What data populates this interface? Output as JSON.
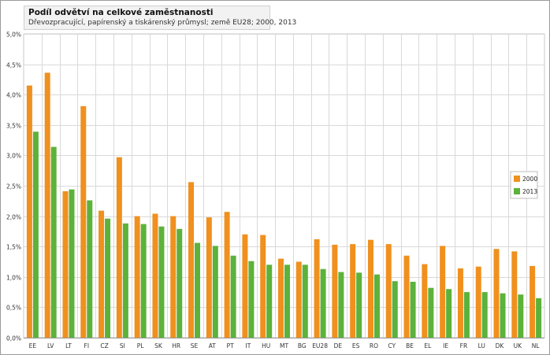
{
  "chart_data": {
    "type": "bar",
    "title": "Podíl odvětví na celkové zaměstnanosti",
    "subtitle": "Dřevozpracující, papírenský a tiskárenský průmysl; země EU28; 2000, 2013",
    "xlabel": "",
    "ylabel": "",
    "ylim": [
      0,
      0.05
    ],
    "yticks": [
      0,
      0.005,
      0.01,
      0.015,
      0.02,
      0.025,
      0.03,
      0.035,
      0.04,
      0.045,
      0.05
    ],
    "ytick_labels": [
      "0,0%",
      "0,5%",
      "1,0%",
      "1,5%",
      "2,0%",
      "2,5%",
      "3,0%",
      "3,5%",
      "4,0%",
      "4,5%",
      "5,0%"
    ],
    "grid": true,
    "legend_position": "right",
    "categories": [
      "EE",
      "LV",
      "LT",
      "FI",
      "CZ",
      "SI",
      "PL",
      "SK",
      "HR",
      "SE",
      "AT",
      "PT",
      "IT",
      "HU",
      "MT",
      "BG",
      "EU28",
      "DE",
      "ES",
      "RO",
      "CY",
      "BE",
      "EL",
      "IE",
      "FR",
      "LU",
      "DK",
      "UK",
      "NL"
    ],
    "series": [
      {
        "name": "2000",
        "color": "#f0901e",
        "values": [
          0.0415,
          0.0436,
          0.0241,
          0.0381,
          0.0209,
          0.0297,
          0.02,
          0.0204,
          0.02,
          0.0256,
          0.0198,
          0.0207,
          0.017,
          0.0169,
          0.013,
          0.0125,
          0.0162,
          0.0153,
          0.0154,
          0.0161,
          0.0154,
          0.0135,
          0.0121,
          0.0151,
          0.0114,
          0.0117,
          0.0146,
          0.0142,
          0.0118
        ]
      },
      {
        "name": "2013",
        "color": "#5cb23a",
        "values": [
          0.0339,
          0.0314,
          0.0244,
          0.0226,
          0.0196,
          0.0188,
          0.0187,
          0.0183,
          0.0179,
          0.0156,
          0.0151,
          0.0135,
          0.0126,
          0.012,
          0.012,
          0.012,
          0.0113,
          0.0108,
          0.0107,
          0.0104,
          0.0093,
          0.0092,
          0.0082,
          0.008,
          0.0075,
          0.0075,
          0.0073,
          0.0071,
          0.0065
        ]
      }
    ]
  }
}
